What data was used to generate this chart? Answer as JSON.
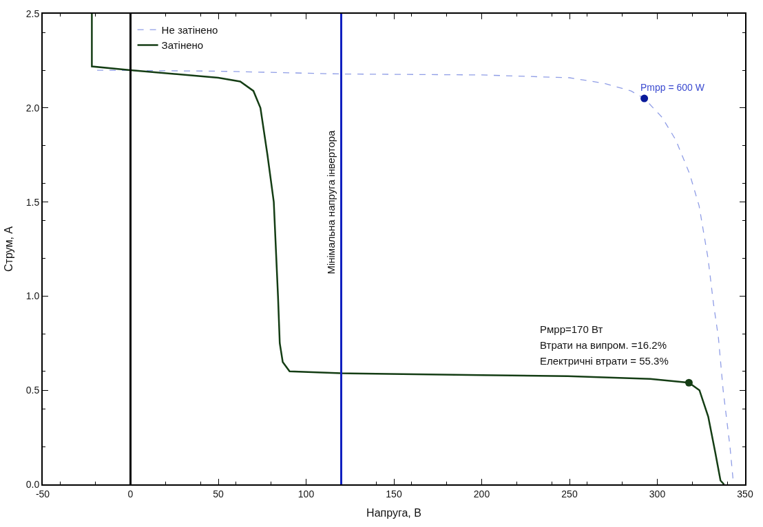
{
  "chart_data": {
    "type": "line",
    "xlabel": "Напруга, В",
    "ylabel": "Струм, А",
    "xlim": [
      -50,
      350
    ],
    "xticks": [
      -50,
      0,
      50,
      100,
      150,
      200,
      250,
      300,
      350
    ],
    "ylim": [
      0,
      2.5
    ],
    "yticks": [
      {
        "value": 0,
        "label": "0.0"
      },
      {
        "value": 0.5,
        "label": "0.5"
      },
      {
        "value": 1,
        "label": "1.0"
      },
      {
        "value": 1.5,
        "label": "1.5"
      },
      {
        "value": 2,
        "label": "2.0"
      },
      {
        "value": 2.5,
        "label": "2.5"
      }
    ],
    "legend": "top left",
    "marker": "none",
    "series": [
      {
        "name": "Не затінено",
        "color": "#8f9de6",
        "line_style": "dashed",
        "x": [
          -19,
          50,
          120,
          200,
          250,
          270,
          285,
          292.6,
          302.7,
          310.5,
          318.4,
          323.8,
          328.9,
          332,
          334.8,
          337.5,
          341.4,
          343.4
        ],
        "values": [
          2.2,
          2.195,
          2.18,
          2.175,
          2.16,
          2.13,
          2.09,
          2.05,
          1.95,
          1.83,
          1.65,
          1.48,
          1.2,
          0.96,
          0.78,
          0.5,
          0.2,
          0
        ]
      },
      {
        "name": "Затінено",
        "color": "#143d14",
        "line_style": "solid",
        "x": [
          -22,
          -22,
          0,
          50,
          62.5,
          70,
          74,
          78,
          81.6,
          84,
          85,
          86.7,
          90.6,
          120,
          200,
          249,
          296,
          318,
          324,
          329,
          333,
          336,
          338
        ],
        "values": [
          2.5,
          2.22,
          2.2,
          2.16,
          2.14,
          2.09,
          2.0,
          1.75,
          1.5,
          1.0,
          0.75,
          0.65,
          0.6,
          0.59,
          0.58,
          0.575,
          0.56,
          0.54,
          0.5,
          0.36,
          0.17,
          0.02,
          0
        ]
      },
      {
        "type": "scatter",
        "marker": "circle",
        "color": "#0a1a9a",
        "x": [
          292.6
        ],
        "values": [
          2.05
        ]
      },
      {
        "type": "scatter",
        "marker": "circle",
        "color": "#143d14",
        "x": [
          318
        ],
        "values": [
          0.54
        ]
      }
    ],
    "ref_lines": [
      {
        "axis": "x",
        "value": 0,
        "color": "#000000"
      },
      {
        "axis": "x",
        "value": 120,
        "color": "#1020c0",
        "label": "Мінімальна напруга інвертора"
      }
    ],
    "annotations": [
      {
        "text": "Pmpp = 600 W",
        "x": 292.6,
        "y": 2.05
      },
      "Pмрр=170 Вт",
      "Втрати на випром. =16.2%",
      "Електричні втрати = 55.3%"
    ]
  }
}
